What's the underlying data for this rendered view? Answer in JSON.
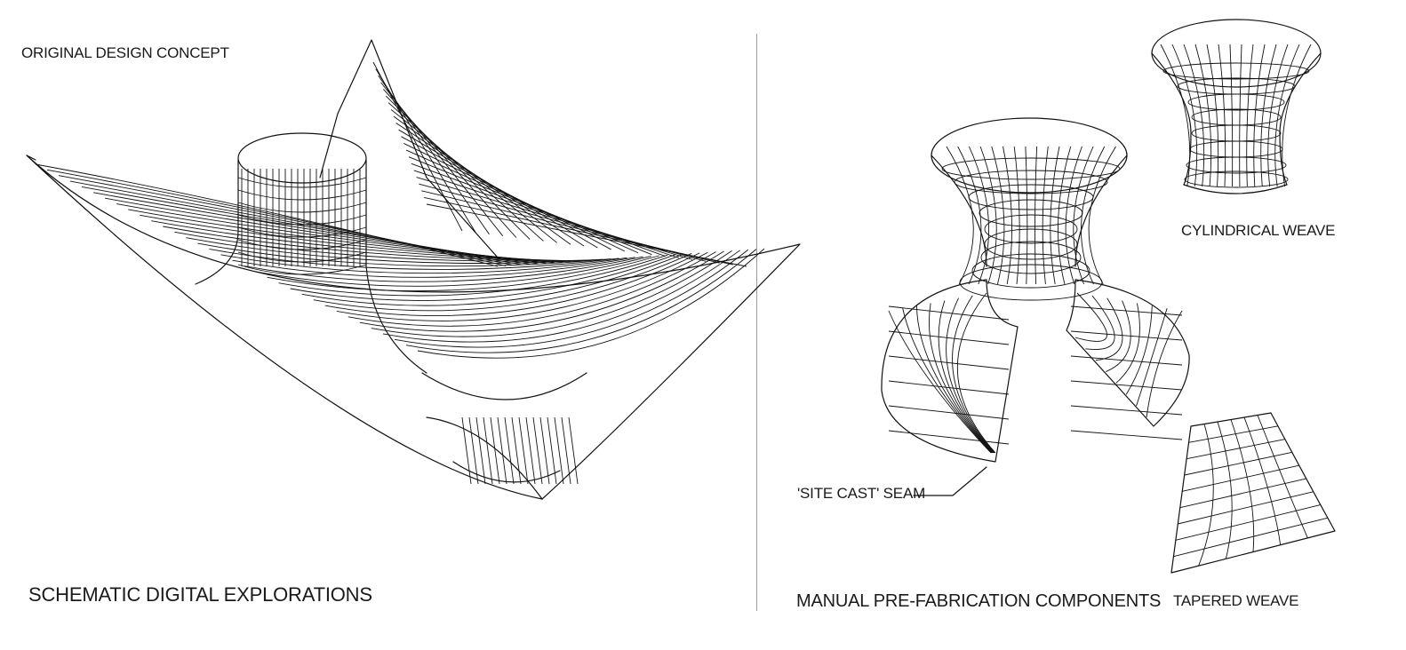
{
  "left_panel": {
    "concept_title": "ORIGINAL DESIGN CONCEPT",
    "section_title": "SCHEMATIC DIGITAL EXPLORATIONS"
  },
  "right_panel": {
    "section_title": "MANUAL PRE-FABRICATION COMPONENTS",
    "callouts": {
      "seam": "'SITE CAST' SEAM",
      "cylindrical": "CYLINDRICAL WEAVE",
      "tapered": "TAPERED WEAVE"
    }
  },
  "colors": {
    "line": "#111111",
    "divider": "#9a9a9a",
    "background": "#ffffff"
  }
}
